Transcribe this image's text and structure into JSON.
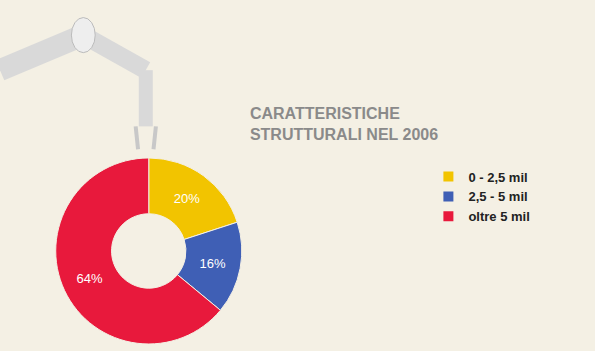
{
  "chart_data": {
    "type": "pie",
    "title": "CARATTERISTICHE STRUTTURALI NEL 2006",
    "categories": [
      "0 - 2,5 mil",
      "2,5 - 5 mil",
      "oltre 5 mil"
    ],
    "values": [
      20,
      16,
      64
    ],
    "value_labels": [
      "20%",
      "16%",
      "64%"
    ],
    "colors": [
      "#f2c400",
      "#3f5fb5",
      "#e8193c"
    ],
    "data_labels": true,
    "legend": "right"
  }
}
